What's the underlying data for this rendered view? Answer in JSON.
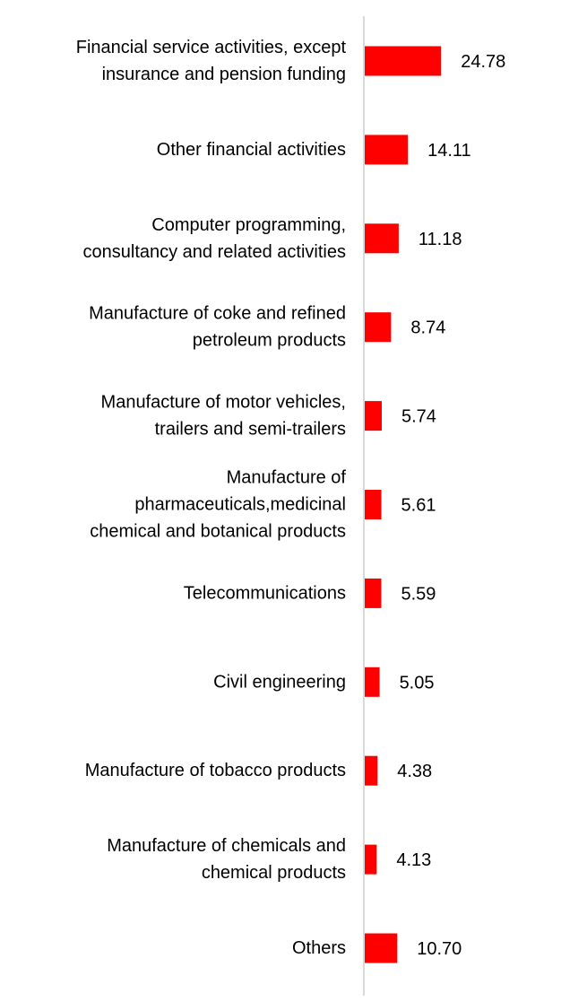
{
  "chart_data": {
    "type": "bar",
    "orientation": "horizontal",
    "categories": [
      [
        "Financial service activities, except",
        "insurance and pension funding"
      ],
      [
        "Other financial activities"
      ],
      [
        "Computer programming,",
        "consultancy and related activities"
      ],
      [
        "Manufacture of coke and refined",
        "petroleum products"
      ],
      [
        "Manufacture of motor vehicles,",
        "trailers and semi-trailers"
      ],
      [
        "Manufacture of",
        "pharmaceuticals,medicinal",
        "chemical and botanical products"
      ],
      [
        "Telecommunications"
      ],
      [
        "Civil engineering"
      ],
      [
        "Manufacture of tobacco products"
      ],
      [
        "Manufacture of chemicals and",
        "chemical products"
      ],
      [
        "Others"
      ]
    ],
    "values": [
      24.78,
      14.11,
      11.18,
      8.74,
      5.74,
      5.61,
      5.59,
      5.05,
      4.38,
      4.13,
      10.7
    ],
    "value_labels": [
      "24.78",
      "14.11",
      "11.18",
      "8.74",
      "5.74",
      "5.61",
      "5.59",
      "5.05",
      "4.38",
      "4.13",
      "10.70"
    ],
    "title": "",
    "xlabel": "",
    "ylabel": "",
    "xlim": [
      0,
      60
    ],
    "bar_color": "#ff0000",
    "axis_color": "#d9d9d9",
    "grid": false,
    "legend": "none"
  }
}
